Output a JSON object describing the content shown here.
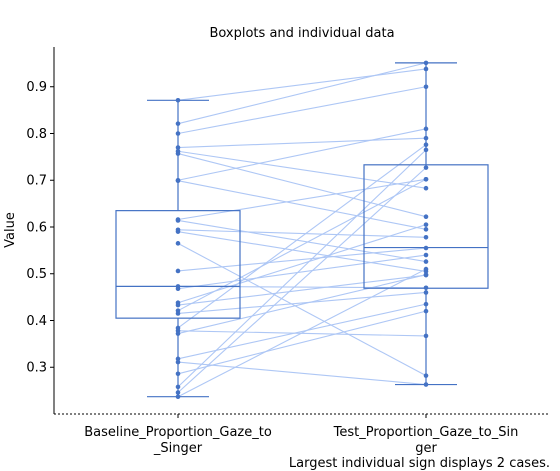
{
  "chart_data": {
    "type": "boxplot",
    "title": "Boxplots and individual data",
    "ylabel": "Value",
    "xlabel": "",
    "ylim": [
      0.2,
      0.985
    ],
    "yticks": [
      0.3,
      0.4,
      0.5,
      0.6,
      0.7,
      0.8,
      0.9
    ],
    "categories": [
      "Baseline_Proportion_Gaze_to\n_Singer",
      "Test_Proportion_Gaze_to_Sin\nger"
    ],
    "footnote": "Largest individual sign displays 2 cases.",
    "colors": {
      "box": "#4472c4",
      "points": "#4472c4",
      "lines": "#aec7f5"
    },
    "boxes": [
      {
        "whisker_low": 0.237,
        "q1": 0.405,
        "median": 0.473,
        "q3": 0.635,
        "whisker_high": 0.871
      },
      {
        "whisker_low": 0.263,
        "q1": 0.469,
        "median": 0.556,
        "q3": 0.733,
        "whisker_high": 0.951
      }
    ],
    "pairs": [
      [
        0.871,
        0.938
      ],
      [
        0.821,
        0.951
      ],
      [
        0.8,
        0.9
      ],
      [
        0.77,
        0.79
      ],
      [
        0.762,
        0.683
      ],
      [
        0.757,
        0.622
      ],
      [
        0.7,
        0.81
      ],
      [
        0.699,
        0.595
      ],
      [
        0.616,
        0.702
      ],
      [
        0.614,
        0.526
      ],
      [
        0.594,
        0.578
      ],
      [
        0.59,
        0.505
      ],
      [
        0.565,
        0.282
      ],
      [
        0.506,
        0.555
      ],
      [
        0.473,
        0.47
      ],
      [
        0.468,
        0.54
      ],
      [
        0.438,
        0.605
      ],
      [
        0.433,
        0.497
      ],
      [
        0.421,
        0.702
      ],
      [
        0.415,
        0.46
      ],
      [
        0.384,
        0.776
      ],
      [
        0.378,
        0.367
      ],
      [
        0.372,
        0.498
      ],
      [
        0.318,
        0.435
      ],
      [
        0.311,
        0.263
      ],
      [
        0.286,
        0.42
      ],
      [
        0.258,
        0.765
      ],
      [
        0.246,
        0.727
      ],
      [
        0.237,
        0.51
      ]
    ]
  }
}
